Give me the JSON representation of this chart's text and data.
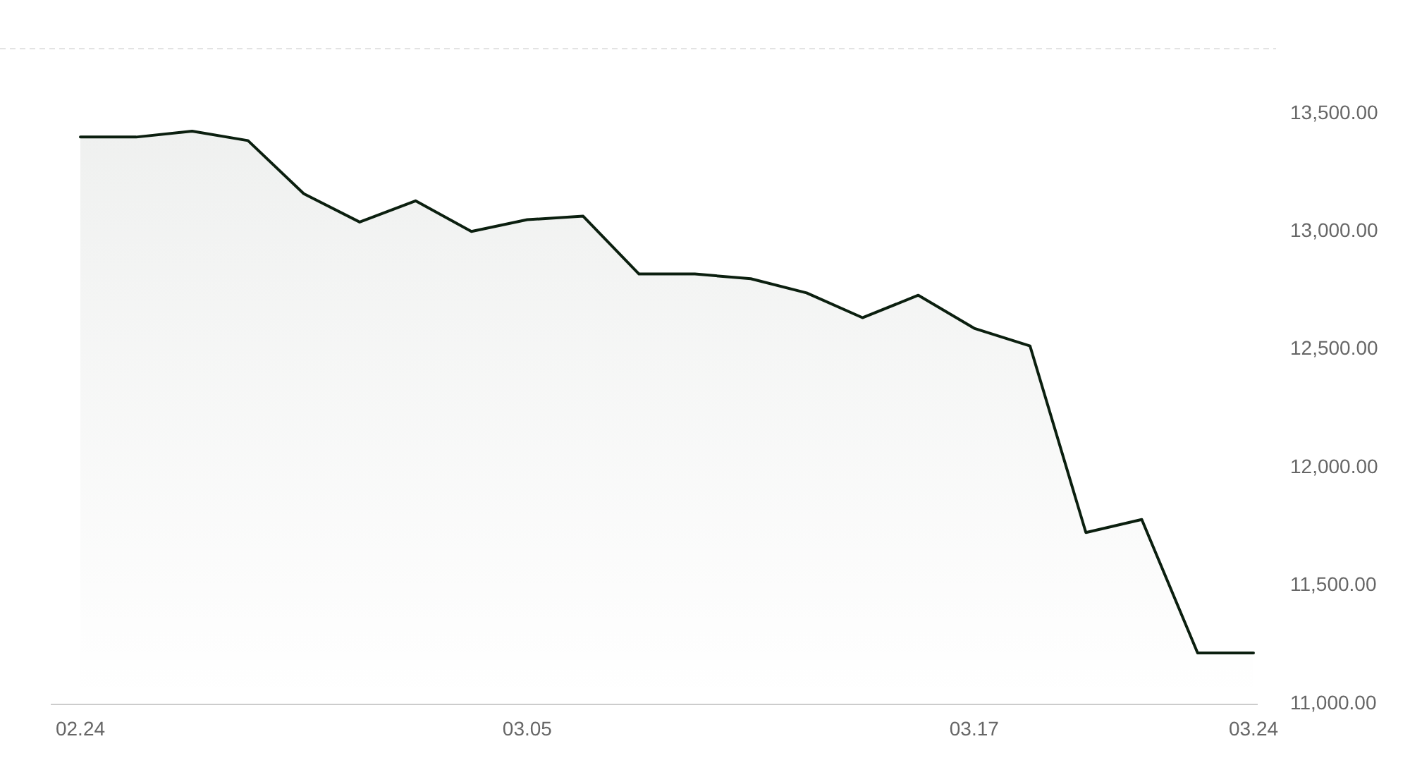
{
  "chart_data": {
    "type": "area",
    "categories": [
      "02.24",
      null,
      null,
      null,
      null,
      null,
      null,
      null,
      "03.05",
      null,
      null,
      null,
      null,
      null,
      null,
      null,
      "03.17",
      null,
      null,
      null,
      null,
      "03.24"
    ],
    "series": [
      {
        "color": "#0b1f0f",
        "values": [
          13400,
          13400,
          13425,
          13385,
          13160,
          13040,
          13130,
          13000,
          13050,
          13065,
          12820,
          12820,
          12800,
          12740,
          12635,
          12730,
          12590,
          12515,
          11725,
          11780,
          11215,
          11215
        ]
      }
    ],
    "ylim": [
      11000,
      13775
    ],
    "yticks": [
      {
        "value": 11000,
        "label": "11,000.00"
      },
      {
        "value": 11500,
        "label": "11,500.00"
      },
      {
        "value": 12000,
        "label": "12,000.00"
      },
      {
        "value": 12500,
        "label": "12,500.00"
      },
      {
        "value": 13000,
        "label": "13,000.00"
      },
      {
        "value": 13500,
        "label": "13,500.00"
      }
    ],
    "marker": "none"
  }
}
